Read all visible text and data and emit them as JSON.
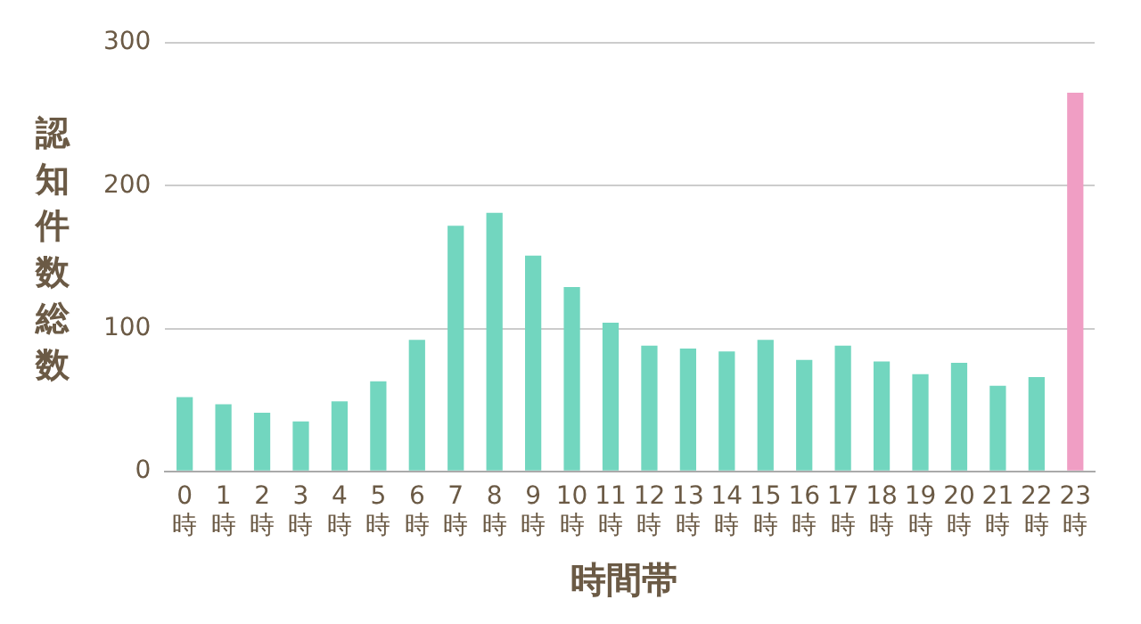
{
  "chart_data": {
    "type": "bar",
    "categories": [
      "0時",
      "1時",
      "2時",
      "3時",
      "4時",
      "5時",
      "6時",
      "7時",
      "8時",
      "9時",
      "10時",
      "11時",
      "12時",
      "13時",
      "14時",
      "15時",
      "16時",
      "17時",
      "18時",
      "19時",
      "20時",
      "21時",
      "22時",
      "23時"
    ],
    "values": [
      52,
      47,
      41,
      35,
      49,
      63,
      92,
      172,
      181,
      151,
      129,
      104,
      88,
      86,
      84,
      92,
      78,
      88,
      77,
      68,
      76,
      60,
      66,
      265
    ],
    "colors": [
      "#72d6bf",
      "#72d6bf",
      "#72d6bf",
      "#72d6bf",
      "#72d6bf",
      "#72d6bf",
      "#72d6bf",
      "#72d6bf",
      "#72d6bf",
      "#72d6bf",
      "#72d6bf",
      "#72d6bf",
      "#72d6bf",
      "#72d6bf",
      "#72d6bf",
      "#72d6bf",
      "#72d6bf",
      "#72d6bf",
      "#72d6bf",
      "#72d6bf",
      "#72d6bf",
      "#72d6bf",
      "#72d6bf",
      "#f09ec4"
    ],
    "xlabel": "時間帯",
    "ylabel": "認知件数総数",
    "ylim": [
      0,
      300
    ],
    "yticks": [
      0,
      100,
      200,
      300
    ],
    "grid": "y"
  }
}
